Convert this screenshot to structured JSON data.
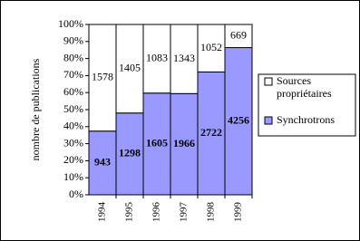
{
  "chart_data": {
    "type": "stacked_percent_bar",
    "y_label": "nombre de publications",
    "categories": [
      "1994",
      "1995",
      "1996",
      "1997",
      "1998",
      "1999"
    ],
    "series": [
      {
        "name": "Synchrotrons",
        "color": "#9999ff",
        "values": [
          943,
          1298,
          1605,
          1966,
          2722,
          4256
        ]
      },
      {
        "name": "Sources propriétaires",
        "color": "#ffffff",
        "values": [
          1578,
          1405,
          1083,
          1343,
          1052,
          669
        ]
      }
    ],
    "ylim": [
      0,
      100
    ],
    "yticks": [
      {
        "value": 0,
        "label": "0%"
      },
      {
        "value": 10,
        "label": "10%"
      },
      {
        "value": 20,
        "label": "20%"
      },
      {
        "value": 30,
        "label": "30%"
      },
      {
        "value": 40,
        "label": "40%"
      },
      {
        "value": 50,
        "label": "50%"
      },
      {
        "value": 60,
        "label": "60%"
      },
      {
        "value": 70,
        "label": "70%"
      },
      {
        "value": 80,
        "label": "80%"
      },
      {
        "value": 90,
        "label": "90%"
      },
      {
        "value": 100,
        "label": "100%"
      }
    ]
  }
}
